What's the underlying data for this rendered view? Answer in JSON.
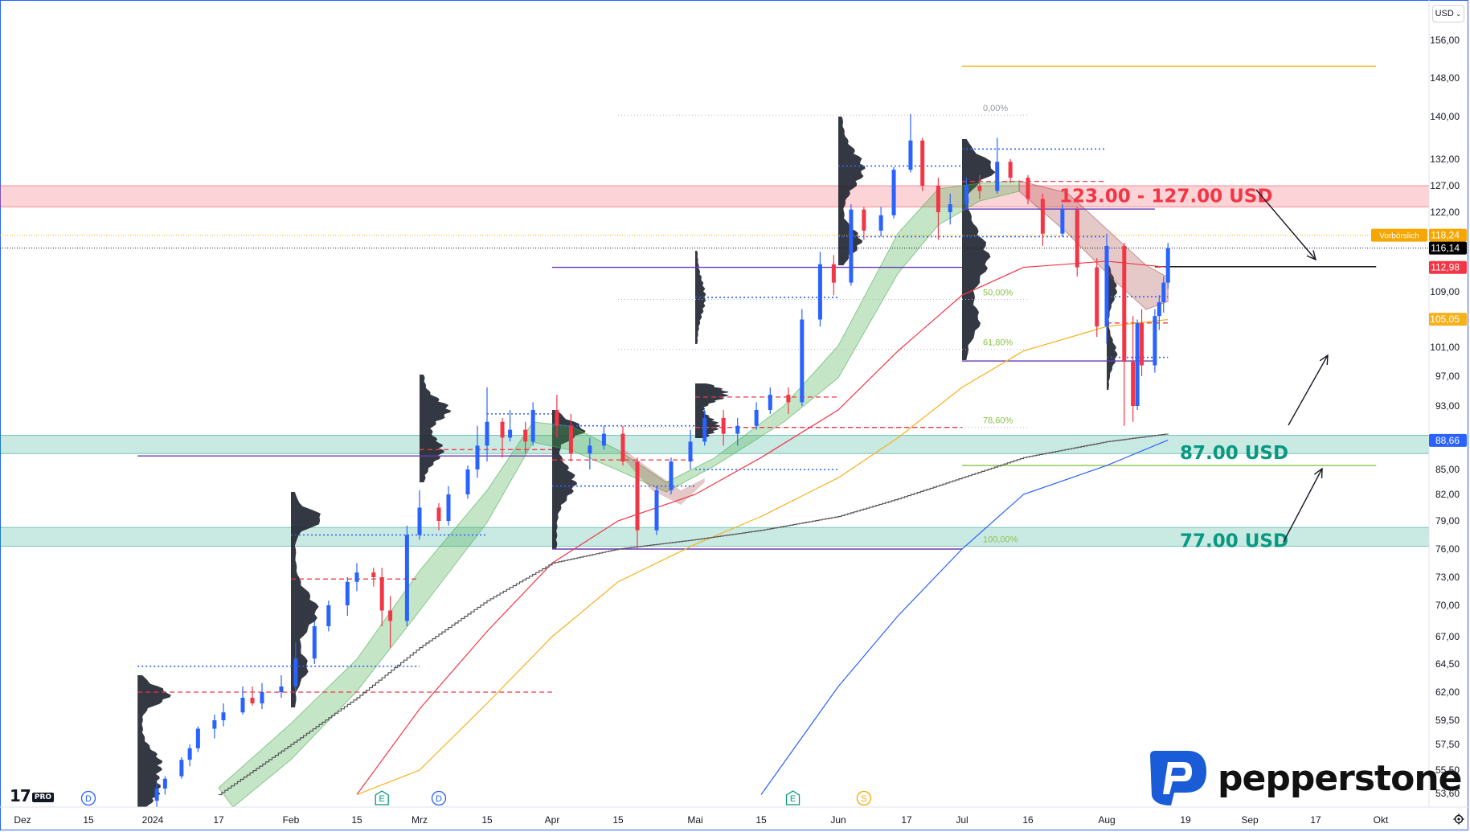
{
  "header": {
    "currency": "USD",
    "currency_caret": "⌄"
  },
  "chart_data": {
    "type": "candlestick",
    "title": "",
    "xlabel": "",
    "ylabel": "",
    "x_ticks": [
      {
        "label": "Dez",
        "date": "2023-12-01"
      },
      {
        "label": "15",
        "date": "2023-12-15"
      },
      {
        "label": "2024",
        "date": "2024-01-01"
      },
      {
        "label": "17",
        "date": "2024-01-17"
      },
      {
        "label": "Feb",
        "date": "2024-02-01"
      },
      {
        "label": "15",
        "date": "2024-02-15"
      },
      {
        "label": "Mrz",
        "date": "2024-03-01"
      },
      {
        "label": "15",
        "date": "2024-03-15"
      },
      {
        "label": "Apr",
        "date": "2024-04-01"
      },
      {
        "label": "15",
        "date": "2024-04-15"
      },
      {
        "label": "Mai",
        "date": "2024-05-01"
      },
      {
        "label": "15",
        "date": "2024-05-15"
      },
      {
        "label": "Jun",
        "date": "2024-06-01"
      },
      {
        "label": "17",
        "date": "2024-06-17"
      },
      {
        "label": "Jul",
        "date": "2024-07-01"
      },
      {
        "label": "16",
        "date": "2024-07-16"
      },
      {
        "label": "Aug",
        "date": "2024-08-01"
      },
      {
        "label": "19",
        "date": "2024-08-19"
      },
      {
        "label": "Sep",
        "date": "2024-09-01"
      },
      {
        "label": "17",
        "date": "2024-09-17"
      },
      {
        "label": "Okt",
        "date": "2024-10-01"
      }
    ],
    "y_ticks": [
      {
        "label": "156,00",
        "value": 156.0
      },
      {
        "label": "148,00",
        "value": 148.0
      },
      {
        "label": "140,00",
        "value": 140.0
      },
      {
        "label": "132,00",
        "value": 132.0
      },
      {
        "label": "127,00",
        "value": 127.0
      },
      {
        "label": "122,00",
        "value": 122.0
      },
      {
        "label": "109,00",
        "value": 109.0
      },
      {
        "label": "101,00",
        "value": 101.0
      },
      {
        "label": "97,00",
        "value": 97.0
      },
      {
        "label": "93,00",
        "value": 93.0
      },
      {
        "label": "85,00",
        "value": 85.0
      },
      {
        "label": "82,00",
        "value": 82.0
      },
      {
        "label": "79,00",
        "value": 79.0
      },
      {
        "label": "76,00",
        "value": 76.0
      },
      {
        "label": "73,00",
        "value": 73.0
      },
      {
        "label": "70,00",
        "value": 70.0
      },
      {
        "label": "67,00",
        "value": 67.0
      },
      {
        "label": "64,50",
        "value": 64.5
      },
      {
        "label": "62,00",
        "value": 62.0
      },
      {
        "label": "59,50",
        "value": 59.5
      },
      {
        "label": "57,50",
        "value": 57.5
      },
      {
        "label": "55,50",
        "value": 55.5
      },
      {
        "label": "53,60",
        "value": 53.6
      }
    ],
    "price_tags": [
      {
        "label": "118,24",
        "value": 118.24,
        "prefix": "Vorbörslich",
        "color": "#f7a600"
      },
      {
        "label": "116,14",
        "value": 116.14,
        "color": "#000000"
      },
      {
        "label": "112,98",
        "value": 112.98,
        "color": "#f23645"
      },
      {
        "label": "105,05",
        "value": 105.05,
        "color": "#f7b11a"
      },
      {
        "label": "88,66",
        "value": 88.66,
        "color": "#2962ff"
      }
    ],
    "zones": [
      {
        "label": "123.00 - 127.00 USD",
        "low": 123.0,
        "high": 127.0,
        "color": "#f23645"
      },
      {
        "label": "87.00 USD",
        "low": 87.0,
        "high": 89.3,
        "color": "#089981"
      },
      {
        "label": "77.00 USD",
        "low": 76.3,
        "high": 78.3,
        "color": "#089981"
      }
    ],
    "fib_levels": [
      {
        "label": "0,00%",
        "value": 140.3
      },
      {
        "label": "50,00%",
        "value": 107.9
      },
      {
        "label": "61,80%",
        "value": 100.7
      },
      {
        "label": "78,60%",
        "value": 90.3
      },
      {
        "label": "100,00%",
        "value": 76.3
      }
    ],
    "horizontal_lines": [
      {
        "value": 150.5,
        "color": "#f7b11a",
        "start": "2024-07-01",
        "end": "2024-09-30"
      },
      {
        "value": 113.1,
        "color": "#000000",
        "start": "2024-08-12",
        "end": "2024-09-30"
      },
      {
        "value": 122.6,
        "color": "#673ab7",
        "start": "2024-07-01",
        "end": "2024-08-12"
      },
      {
        "value": 99.1,
        "color": "#673ab7",
        "start": "2024-07-01",
        "end": "2024-08-12"
      },
      {
        "value": 113.0,
        "color": "#673ab7",
        "start": "2024-04-01",
        "end": "2024-07-01"
      },
      {
        "value": 86.7,
        "color": "#673ab7",
        "start": "2023-12-28",
        "end": "2024-04-01"
      },
      {
        "value": 76.0,
        "color": "#673ab7",
        "start": "2024-04-01",
        "end": "2024-07-01"
      },
      {
        "value": 85.5,
        "color": "#8bc34a",
        "start": "2024-07-01",
        "end": "2024-09-30"
      }
    ],
    "candles": [
      {
        "date": "2024-01-02",
        "o": 53.0,
        "h": 54.5,
        "l": 52.0,
        "c": 54.0
      },
      {
        "date": "2024-01-04",
        "o": 54.0,
        "h": 55.0,
        "l": 53.5,
        "c": 54.8
      },
      {
        "date": "2024-01-08",
        "o": 55.0,
        "h": 56.5,
        "l": 54.8,
        "c": 56.3
      },
      {
        "date": "2024-01-10",
        "o": 56.3,
        "h": 57.5,
        "l": 55.8,
        "c": 57.2
      },
      {
        "date": "2024-01-12",
        "o": 57.2,
        "h": 59.0,
        "l": 56.9,
        "c": 58.8
      },
      {
        "date": "2024-01-16",
        "o": 58.8,
        "h": 60.0,
        "l": 58.0,
        "c": 59.5
      },
      {
        "date": "2024-01-18",
        "o": 59.5,
        "h": 61.0,
        "l": 59.0,
        "c": 60.2
      },
      {
        "date": "2024-01-22",
        "o": 60.2,
        "h": 62.5,
        "l": 60.0,
        "c": 61.5
      },
      {
        "date": "2024-01-24",
        "o": 61.5,
        "h": 62.5,
        "l": 60.8,
        "c": 61.0
      },
      {
        "date": "2024-01-26",
        "o": 61.0,
        "h": 62.8,
        "l": 60.5,
        "c": 62.0
      },
      {
        "date": "2024-01-30",
        "o": 62.0,
        "h": 63.5,
        "l": 61.5,
        "c": 62.5
      },
      {
        "date": "2024-02-02",
        "o": 62.5,
        "h": 66.5,
        "l": 62.0,
        "c": 65.0
      },
      {
        "date": "2024-02-06",
        "o": 65.0,
        "h": 68.5,
        "l": 64.5,
        "c": 68.0
      },
      {
        "date": "2024-02-09",
        "o": 68.0,
        "h": 70.5,
        "l": 67.5,
        "c": 70.0
      },
      {
        "date": "2024-02-13",
        "o": 70.0,
        "h": 73.0,
        "l": 69.0,
        "c": 72.5
      },
      {
        "date": "2024-02-15",
        "o": 72.5,
        "h": 74.5,
        "l": 71.5,
        "c": 73.5
      },
      {
        "date": "2024-02-19",
        "o": 73.5,
        "h": 74.0,
        "l": 72.0,
        "c": 73.0
      },
      {
        "date": "2024-02-21",
        "o": 73.0,
        "h": 74.0,
        "l": 68.0,
        "c": 69.5
      },
      {
        "date": "2024-02-23",
        "o": 69.5,
        "h": 71.0,
        "l": 66.0,
        "c": 68.5
      },
      {
        "date": "2024-02-27",
        "o": 68.5,
        "h": 78.5,
        "l": 68.0,
        "c": 77.5
      },
      {
        "date": "2024-03-01",
        "o": 77.5,
        "h": 82.5,
        "l": 77.0,
        "c": 80.5
      },
      {
        "date": "2024-03-05",
        "o": 80.5,
        "h": 81.0,
        "l": 78.0,
        "c": 79.0
      },
      {
        "date": "2024-03-07",
        "o": 79.0,
        "h": 83.0,
        "l": 78.5,
        "c": 82.0
      },
      {
        "date": "2024-03-11",
        "o": 82.0,
        "h": 85.5,
        "l": 81.5,
        "c": 85.0
      },
      {
        "date": "2024-03-13",
        "o": 85.0,
        "h": 90.5,
        "l": 84.0,
        "c": 88.0
      },
      {
        "date": "2024-03-15",
        "o": 88.0,
        "h": 95.5,
        "l": 86.0,
        "c": 91.0
      },
      {
        "date": "2024-03-19",
        "o": 91.0,
        "h": 91.5,
        "l": 86.5,
        "c": 89.0
      },
      {
        "date": "2024-03-21",
        "o": 89.0,
        "h": 92.5,
        "l": 88.5,
        "c": 90.0
      },
      {
        "date": "2024-03-25",
        "o": 90.0,
        "h": 91.0,
        "l": 87.0,
        "c": 88.5
      },
      {
        "date": "2024-03-27",
        "o": 88.5,
        "h": 93.5,
        "l": 88.0,
        "c": 92.5
      },
      {
        "date": "2024-04-02",
        "o": 92.5,
        "h": 94.5,
        "l": 89.0,
        "c": 90.5
      },
      {
        "date": "2024-04-05",
        "o": 90.5,
        "h": 92.0,
        "l": 86.0,
        "c": 87.0
      },
      {
        "date": "2024-04-09",
        "o": 87.0,
        "h": 89.0,
        "l": 85.0,
        "c": 88.0
      },
      {
        "date": "2024-04-12",
        "o": 88.0,
        "h": 90.5,
        "l": 87.5,
        "c": 89.5
      },
      {
        "date": "2024-04-16",
        "o": 89.5,
        "h": 90.5,
        "l": 85.5,
        "c": 86.0
      },
      {
        "date": "2024-04-19",
        "o": 86.0,
        "h": 86.5,
        "l": 76.0,
        "c": 78.0
      },
      {
        "date": "2024-04-23",
        "o": 78.0,
        "h": 83.0,
        "l": 77.5,
        "c": 82.5
      },
      {
        "date": "2024-04-26",
        "o": 82.5,
        "h": 86.5,
        "l": 82.0,
        "c": 86.0
      },
      {
        "date": "2024-04-30",
        "o": 86.0,
        "h": 90.0,
        "l": 85.0,
        "c": 88.5
      },
      {
        "date": "2024-05-03",
        "o": 88.5,
        "h": 92.5,
        "l": 88.0,
        "c": 91.5
      },
      {
        "date": "2024-05-07",
        "o": 91.5,
        "h": 92.5,
        "l": 88.0,
        "c": 89.5
      },
      {
        "date": "2024-05-10",
        "o": 89.5,
        "h": 91.5,
        "l": 88.0,
        "c": 90.5
      },
      {
        "date": "2024-05-14",
        "o": 90.5,
        "h": 93.5,
        "l": 90.0,
        "c": 92.5
      },
      {
        "date": "2024-05-17",
        "o": 92.5,
        "h": 95.5,
        "l": 92.0,
        "c": 94.5
      },
      {
        "date": "2024-05-21",
        "o": 94.5,
        "h": 95.5,
        "l": 92.0,
        "c": 93.5
      },
      {
        "date": "2024-05-24",
        "o": 93.5,
        "h": 106.5,
        "l": 93.0,
        "c": 105.0
      },
      {
        "date": "2024-05-28",
        "o": 105.0,
        "h": 115.5,
        "l": 104.0,
        "c": 113.5
      },
      {
        "date": "2024-05-31",
        "o": 113.5,
        "h": 115.0,
        "l": 108.5,
        "c": 110.5
      },
      {
        "date": "2024-06-04",
        "o": 110.5,
        "h": 123.5,
        "l": 110.0,
        "c": 122.5
      },
      {
        "date": "2024-06-07",
        "o": 122.5,
        "h": 123.0,
        "l": 117.5,
        "c": 119.0
      },
      {
        "date": "2024-06-11",
        "o": 119.0,
        "h": 123.0,
        "l": 118.0,
        "c": 121.5
      },
      {
        "date": "2024-06-14",
        "o": 121.5,
        "h": 130.5,
        "l": 121.0,
        "c": 130.0
      },
      {
        "date": "2024-06-18",
        "o": 130.0,
        "h": 140.5,
        "l": 129.5,
        "c": 135.5
      },
      {
        "date": "2024-06-21",
        "o": 135.5,
        "h": 136.0,
        "l": 126.0,
        "c": 127.0
      },
      {
        "date": "2024-06-25",
        "o": 127.0,
        "h": 128.5,
        "l": 117.5,
        "c": 122.0
      },
      {
        "date": "2024-06-28",
        "o": 122.0,
        "h": 125.5,
        "l": 120.0,
        "c": 123.5
      },
      {
        "date": "2024-07-02",
        "o": 123.5,
        "h": 128.5,
        "l": 122.5,
        "c": 127.0
      },
      {
        "date": "2024-07-05",
        "o": 127.0,
        "h": 129.0,
        "l": 124.5,
        "c": 126.0
      },
      {
        "date": "2024-07-09",
        "o": 126.0,
        "h": 136.0,
        "l": 125.5,
        "c": 131.5
      },
      {
        "date": "2024-07-12",
        "o": 131.5,
        "h": 132.0,
        "l": 127.5,
        "c": 128.5
      },
      {
        "date": "2024-07-16",
        "o": 128.5,
        "h": 129.0,
        "l": 123.5,
        "c": 124.5
      },
      {
        "date": "2024-07-19",
        "o": 124.5,
        "h": 125.5,
        "l": 116.5,
        "c": 118.5
      },
      {
        "date": "2024-07-23",
        "o": 118.5,
        "h": 123.5,
        "l": 118.0,
        "c": 122.5
      },
      {
        "date": "2024-07-26",
        "o": 122.5,
        "h": 123.0,
        "l": 111.5,
        "c": 113.0
      },
      {
        "date": "2024-07-30",
        "o": 113.0,
        "h": 114.5,
        "l": 102.5,
        "c": 104.0
      },
      {
        "date": "2024-08-01",
        "o": 104.0,
        "h": 118.5,
        "l": 101.5,
        "c": 116.5
      },
      {
        "date": "2024-08-05",
        "o": 116.5,
        "h": 117.0,
        "l": 90.5,
        "c": 99.0
      },
      {
        "date": "2024-08-07",
        "o": 99.0,
        "h": 105.5,
        "l": 91.0,
        "c": 93.0
      },
      {
        "date": "2024-08-08",
        "o": 93.0,
        "h": 105.0,
        "l": 92.5,
        "c": 104.5
      },
      {
        "date": "2024-08-09",
        "o": 104.5,
        "h": 106.5,
        "l": 97.0,
        "c": 98.5
      },
      {
        "date": "2024-08-12",
        "o": 98.5,
        "h": 106.5,
        "l": 97.5,
        "c": 105.5
      },
      {
        "date": "2024-08-13",
        "o": 105.5,
        "h": 108.5,
        "l": 103.5,
        "c": 107.5
      },
      {
        "date": "2024-08-14",
        "o": 107.5,
        "h": 111.5,
        "l": 106.0,
        "c": 110.5
      },
      {
        "date": "2024-08-15",
        "o": 110.5,
        "h": 117.0,
        "l": 109.5,
        "c": 116.1
      }
    ],
    "moving_averages": [
      {
        "color": "#f23645",
        "points": [
          [
            "2024-02-15",
            53.5
          ],
          [
            "2024-03-01",
            60.5
          ],
          [
            "2024-03-15",
            67.5
          ],
          [
            "2024-04-01",
            74.5
          ],
          [
            "2024-04-15",
            79.0
          ],
          [
            "2024-05-01",
            82.0
          ],
          [
            "2024-05-15",
            86.5
          ],
          [
            "2024-06-01",
            92.5
          ],
          [
            "2024-06-15",
            100.5
          ],
          [
            "2024-07-01",
            108.5
          ],
          [
            "2024-07-15",
            113.0
          ],
          [
            "2024-08-01",
            114.0
          ],
          [
            "2024-08-15",
            113.0
          ]
        ]
      },
      {
        "color": "#f7b11a",
        "points": [
          [
            "2024-02-15",
            53.5
          ],
          [
            "2024-03-01",
            55.5
          ],
          [
            "2024-03-15",
            61.0
          ],
          [
            "2024-04-01",
            67.0
          ],
          [
            "2024-04-15",
            72.5
          ],
          [
            "2024-05-01",
            76.5
          ],
          [
            "2024-05-15",
            79.5
          ],
          [
            "2024-06-01",
            84.0
          ],
          [
            "2024-06-15",
            89.0
          ],
          [
            "2024-07-01",
            95.5
          ],
          [
            "2024-07-15",
            100.5
          ],
          [
            "2024-08-01",
            104.0
          ],
          [
            "2024-08-15",
            105.0
          ]
        ]
      },
      {
        "color": "#2962ff",
        "points": [
          [
            "2024-05-15",
            53.5
          ],
          [
            "2024-06-01",
            62.5
          ],
          [
            "2024-06-15",
            69.0
          ],
          [
            "2024-07-01",
            76.0
          ],
          [
            "2024-07-15",
            82.0
          ],
          [
            "2024-08-01",
            85.5
          ],
          [
            "2024-08-15",
            88.7
          ]
        ]
      },
      {
        "color": "#555555",
        "points": [
          [
            "2024-01-17",
            53.5
          ],
          [
            "2024-02-01",
            57.5
          ],
          [
            "2024-02-15",
            61.5
          ],
          [
            "2024-03-01",
            66.0
          ],
          [
            "2024-03-15",
            70.5
          ],
          [
            "2024-04-01",
            74.5
          ],
          [
            "2024-04-15",
            76.0
          ],
          [
            "2024-05-01",
            77.0
          ],
          [
            "2024-05-15",
            78.0
          ],
          [
            "2024-06-01",
            79.5
          ],
          [
            "2024-06-15",
            81.5
          ],
          [
            "2024-07-01",
            84.0
          ],
          [
            "2024-07-15",
            86.5
          ],
          [
            "2024-08-01",
            88.5
          ],
          [
            "2024-08-15",
            89.5
          ]
        ]
      }
    ],
    "event_markers": [
      {
        "label": "D",
        "date": "2023-12-15",
        "color": "#2962ff"
      },
      {
        "label": "E",
        "date": "2024-02-21",
        "color": "#089981"
      },
      {
        "label": "D",
        "date": "2024-03-05",
        "color": "#2962ff"
      },
      {
        "label": "E",
        "date": "2024-05-22",
        "color": "#089981"
      },
      {
        "label": "S",
        "date": "2024-06-07",
        "color": "#f7a600"
      }
    ]
  },
  "branding": {
    "tv_logo": "17",
    "tv_pro": "PRO",
    "brand_name": "pepperstone",
    "brand_icon": "pepperstone-p-icon"
  },
  "footer": {
    "settings_icon": "gear-icon"
  }
}
